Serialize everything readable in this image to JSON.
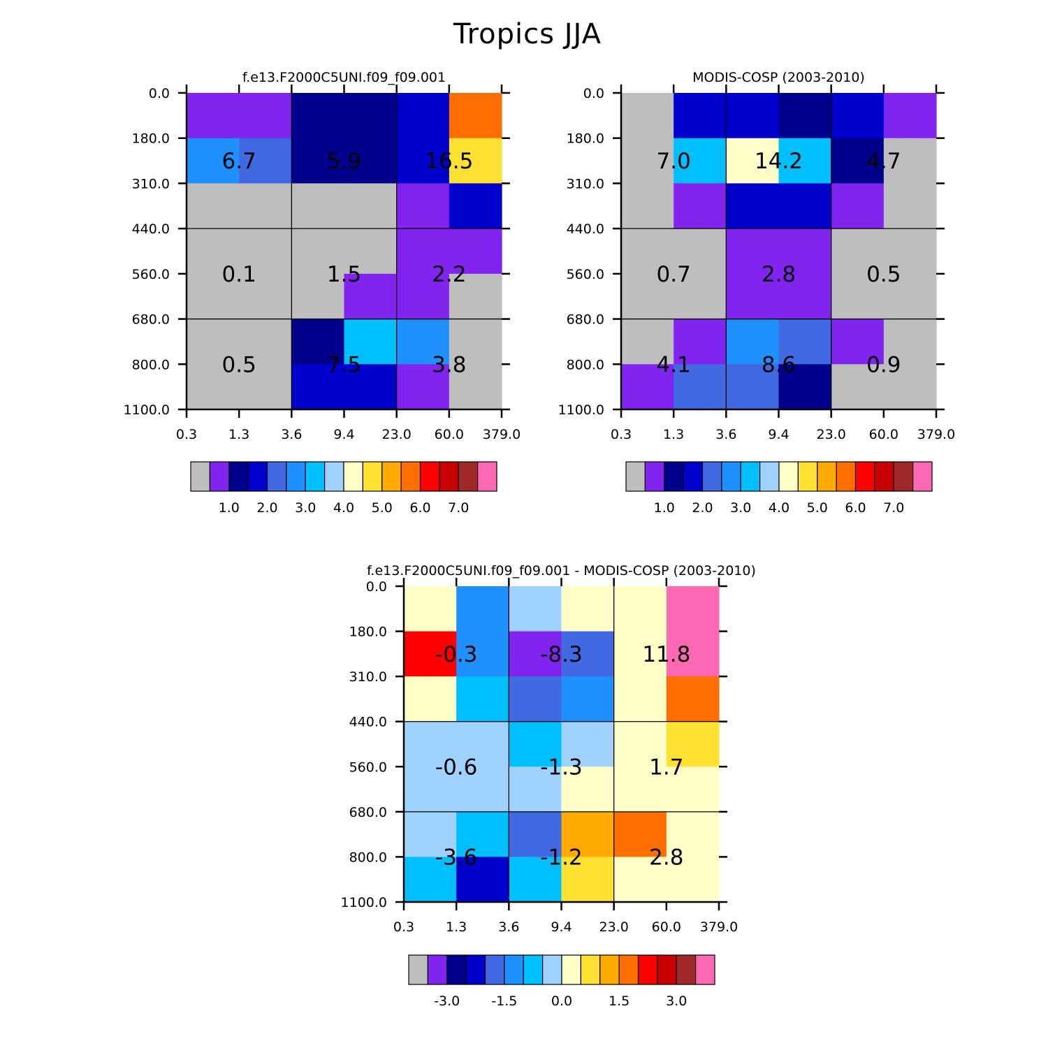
{
  "title": "Tropics JJA",
  "palette": [
    "#BEBEBE",
    "#8224F0",
    "#00008C",
    "#0000CD",
    "#4169E1",
    "#1E90FF",
    "#00BFFF",
    "#A0D2FF",
    "#FFFFC8",
    "#FFE132",
    "#FFAA00",
    "#FF6E00",
    "#FF0000",
    "#C80000",
    "#A02828",
    "#FF69B4"
  ],
  "chart_data": [
    {
      "type": "heatmap",
      "title": "f.e13.F2000C5UNI.f09_f09.001",
      "x_tick_labels": [
        "0.3",
        "1.3",
        "3.6",
        "9.4",
        "23.0",
        "60.0",
        "379.0"
      ],
      "y_tick_labels": [
        "0.0",
        "180.0",
        "310.0",
        "440.0",
        "560.0",
        "680.0",
        "800.0",
        "1100.0"
      ],
      "cells": [
        [
          1,
          1,
          2,
          2,
          3,
          11
        ],
        [
          5,
          4,
          2,
          2,
          3,
          9
        ],
        [
          0,
          0,
          0,
          0,
          1,
          3
        ],
        [
          0,
          0,
          0,
          0,
          1,
          1
        ],
        [
          0,
          0,
          0,
          1,
          1,
          0
        ],
        [
          0,
          0,
          2,
          6,
          5,
          0
        ],
        [
          0,
          0,
          3,
          3,
          1,
          0
        ]
      ],
      "annotations": [
        {
          "row": 0,
          "col": 0,
          "text": "6.7"
        },
        {
          "row": 0,
          "col": 1,
          "text": "5.9"
        },
        {
          "row": 0,
          "col": 2,
          "text": "16.5"
        },
        {
          "row": 1,
          "col": 0,
          "text": "0.1"
        },
        {
          "row": 1,
          "col": 1,
          "text": "1.5"
        },
        {
          "row": 1,
          "col": 2,
          "text": "2.2"
        },
        {
          "row": 2,
          "col": 0,
          "text": "0.5"
        },
        {
          "row": 2,
          "col": 1,
          "text": "7.5"
        },
        {
          "row": 2,
          "col": 2,
          "text": "3.8"
        }
      ],
      "colorbar_labels": [
        "1.0",
        "2.0",
        "3.0",
        "4.0",
        "5.0",
        "6.0",
        "7.0"
      ]
    },
    {
      "type": "heatmap",
      "title": "MODIS-COSP (2003-2010)",
      "x_tick_labels": [
        "0.3",
        "1.3",
        "3.6",
        "9.4",
        "23.0",
        "60.0",
        "379.0"
      ],
      "y_tick_labels": [
        "0.0",
        "180.0",
        "310.0",
        "440.0",
        "560.0",
        "680.0",
        "800.0",
        "1100.0"
      ],
      "cells": [
        [
          0,
          3,
          3,
          2,
          3,
          1
        ],
        [
          0,
          6,
          8,
          6,
          2,
          0
        ],
        [
          0,
          1,
          3,
          3,
          1,
          0
        ],
        [
          0,
          0,
          1,
          1,
          0,
          0
        ],
        [
          0,
          0,
          1,
          1,
          0,
          0
        ],
        [
          0,
          1,
          5,
          4,
          1,
          0
        ],
        [
          1,
          4,
          4,
          2,
          0,
          0
        ]
      ],
      "annotations": [
        {
          "row": 0,
          "col": 0,
          "text": "7.0"
        },
        {
          "row": 0,
          "col": 1,
          "text": "14.2"
        },
        {
          "row": 0,
          "col": 2,
          "text": "4.7"
        },
        {
          "row": 1,
          "col": 0,
          "text": "0.7"
        },
        {
          "row": 1,
          "col": 1,
          "text": "2.8"
        },
        {
          "row": 1,
          "col": 2,
          "text": "0.5"
        },
        {
          "row": 2,
          "col": 0,
          "text": "4.1"
        },
        {
          "row": 2,
          "col": 1,
          "text": "8.6"
        },
        {
          "row": 2,
          "col": 2,
          "text": "0.9"
        }
      ],
      "colorbar_labels": [
        "1.0",
        "2.0",
        "3.0",
        "4.0",
        "5.0",
        "6.0",
        "7.0"
      ]
    },
    {
      "type": "heatmap",
      "title": "f.e13.F2000C5UNI.f09_f09.001 - MODIS-COSP (2003-2010)",
      "x_tick_labels": [
        "0.3",
        "1.3",
        "3.6",
        "9.4",
        "23.0",
        "60.0",
        "379.0"
      ],
      "y_tick_labels": [
        "0.0",
        "180.0",
        "310.0",
        "440.0",
        "560.0",
        "680.0",
        "800.0",
        "1100.0"
      ],
      "cells": [
        [
          8,
          5,
          7,
          8,
          8,
          15
        ],
        [
          12,
          5,
          1,
          4,
          8,
          15
        ],
        [
          8,
          6,
          4,
          5,
          8,
          11
        ],
        [
          7,
          7,
          6,
          7,
          8,
          9
        ],
        [
          7,
          7,
          7,
          8,
          8,
          8
        ],
        [
          7,
          6,
          4,
          10,
          11,
          8
        ],
        [
          6,
          3,
          6,
          9,
          8,
          8
        ]
      ],
      "annotations": [
        {
          "row": 0,
          "col": 0,
          "text": "-0.3"
        },
        {
          "row": 0,
          "col": 1,
          "text": "-8.3"
        },
        {
          "row": 0,
          "col": 2,
          "text": "11.8"
        },
        {
          "row": 1,
          "col": 0,
          "text": "-0.6"
        },
        {
          "row": 1,
          "col": 1,
          "text": "-1.3"
        },
        {
          "row": 1,
          "col": 2,
          "text": "1.7"
        },
        {
          "row": 2,
          "col": 0,
          "text": "-3.6"
        },
        {
          "row": 2,
          "col": 1,
          "text": "-1.2"
        },
        {
          "row": 2,
          "col": 2,
          "text": "2.8"
        }
      ],
      "colorbar_labels": [
        "-3.0",
        "-1.5",
        "0.0",
        "1.5",
        "3.0"
      ]
    }
  ]
}
